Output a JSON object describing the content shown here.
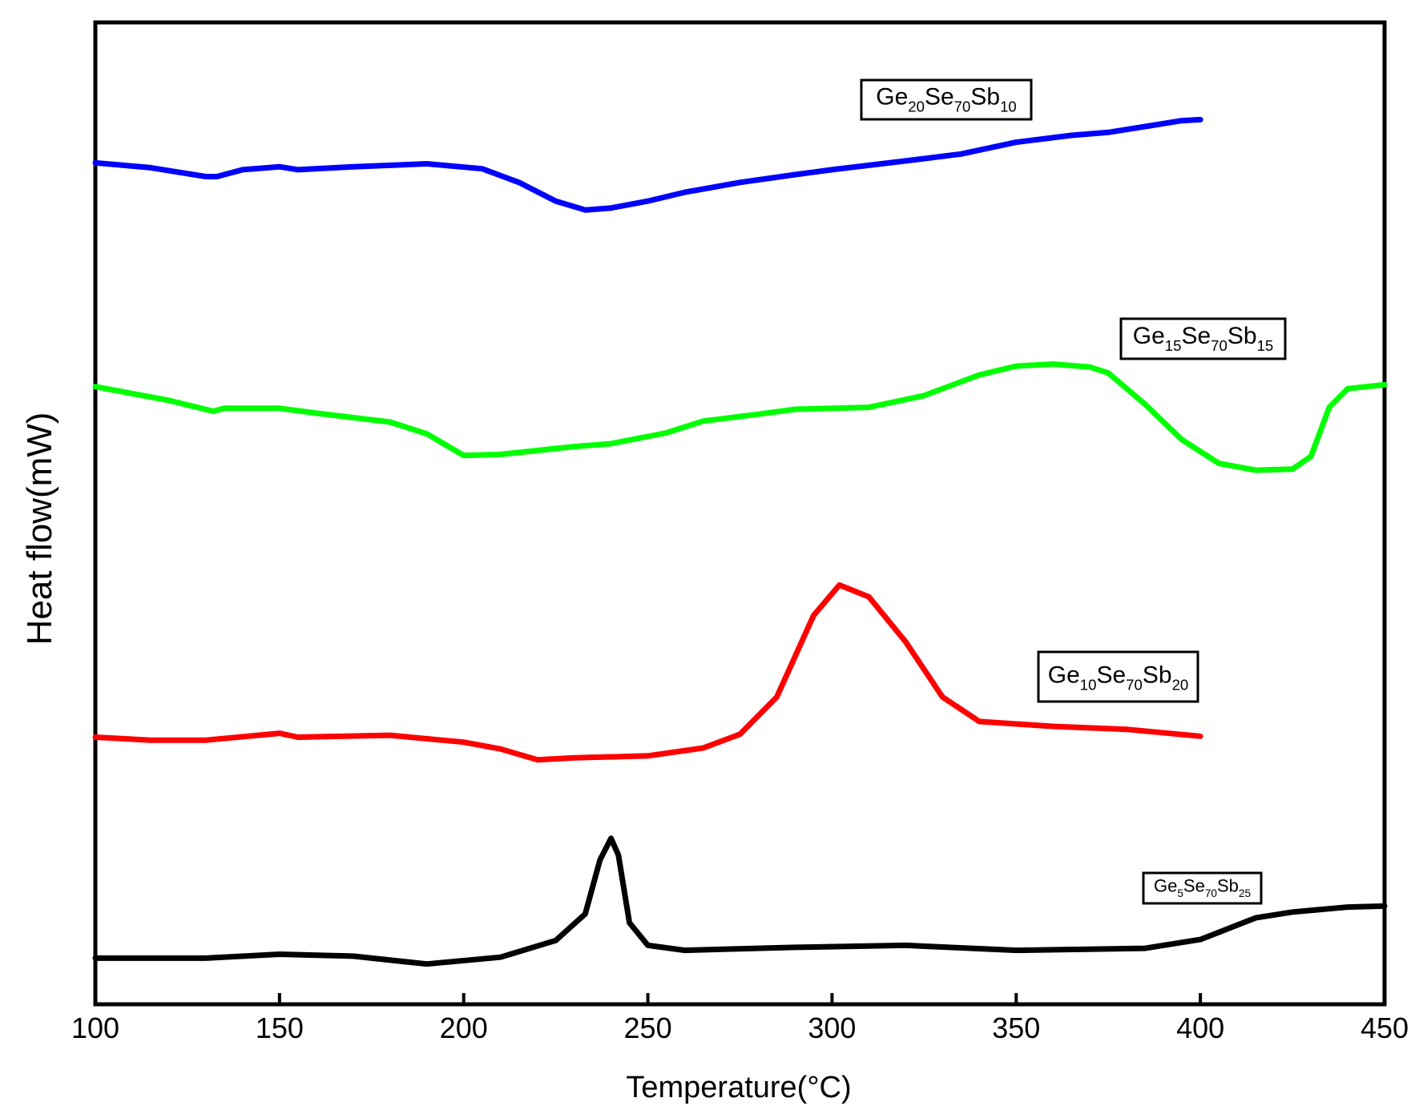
{
  "chart_data": {
    "type": "line",
    "x_label": "Temperature(°C)",
    "y_label": "Heat flow(mW)",
    "xlim": [
      100,
      450
    ],
    "xticks": [
      100,
      150,
      200,
      250,
      300,
      350,
      400,
      450
    ],
    "ylim": [
      0,
      100
    ],
    "series": [
      {
        "name": "Ge20Se70Sb10",
        "color": "#0000ff",
        "x": [
          100,
          115,
          130,
          133,
          140,
          150,
          155,
          170,
          190,
          205,
          215,
          225,
          233,
          240,
          250,
          260,
          275,
          290,
          300,
          320,
          335,
          350,
          365,
          375,
          385,
          395,
          400
        ],
        "values": [
          85.7,
          85.2,
          84.3,
          84.3,
          85.0,
          85.3,
          85.0,
          85.3,
          85.6,
          85.1,
          83.7,
          81.8,
          80.9,
          81.1,
          81.8,
          82.7,
          83.7,
          84.5,
          85.0,
          85.9,
          86.6,
          87.8,
          88.5,
          88.8,
          89.4,
          90.0,
          90.1
        ]
      },
      {
        "name": "Ge15Se70Sb15",
        "color": "#00ff00",
        "x": [
          100,
          120,
          132,
          135,
          150,
          160,
          180,
          190,
          200,
          210,
          230,
          240,
          255,
          265,
          280,
          290,
          310,
          325,
          340,
          350,
          360,
          370,
          375,
          385,
          395,
          405,
          415,
          425,
          430,
          435,
          440,
          450
        ],
        "values": [
          62.9,
          61.5,
          60.4,
          60.7,
          60.7,
          60.2,
          59.3,
          58.1,
          55.9,
          56.0,
          56.8,
          57.1,
          58.2,
          59.4,
          60.1,
          60.6,
          60.8,
          62.0,
          64.1,
          65.0,
          65.2,
          64.9,
          64.3,
          61.1,
          57.5,
          55.1,
          54.4,
          54.5,
          55.8,
          60.8,
          62.7,
          63.1
        ]
      },
      {
        "name": "Ge10Se70Sb20",
        "color": "#ff0000",
        "x": [
          100,
          115,
          130,
          150,
          155,
          180,
          200,
          210,
          220,
          230,
          250,
          265,
          275,
          285,
          295,
          302,
          310,
          320,
          330,
          340,
          360,
          380,
          400
        ],
        "values": [
          27.2,
          26.9,
          26.9,
          27.6,
          27.2,
          27.4,
          26.7,
          26.0,
          24.9,
          25.1,
          25.3,
          26.1,
          27.5,
          31.3,
          39.6,
          42.7,
          41.5,
          36.9,
          31.3,
          28.8,
          28.3,
          28.0,
          27.3
        ]
      },
      {
        "name": "Ge5Se70Sb25",
        "color": "#000000",
        "x": [
          100,
          130,
          150,
          170,
          190,
          210,
          225,
          233,
          237,
          240,
          242,
          245,
          250,
          260,
          290,
          320,
          350,
          385,
          400,
          415,
          425,
          440,
          450
        ],
        "values": [
          4.7,
          4.7,
          5.1,
          4.9,
          4.1,
          4.8,
          6.5,
          9.2,
          14.7,
          16.9,
          15.2,
          8.3,
          6.0,
          5.5,
          5.8,
          6.0,
          5.5,
          5.7,
          6.6,
          8.8,
          9.4,
          9.9,
          10.0
        ]
      }
    ]
  }
}
